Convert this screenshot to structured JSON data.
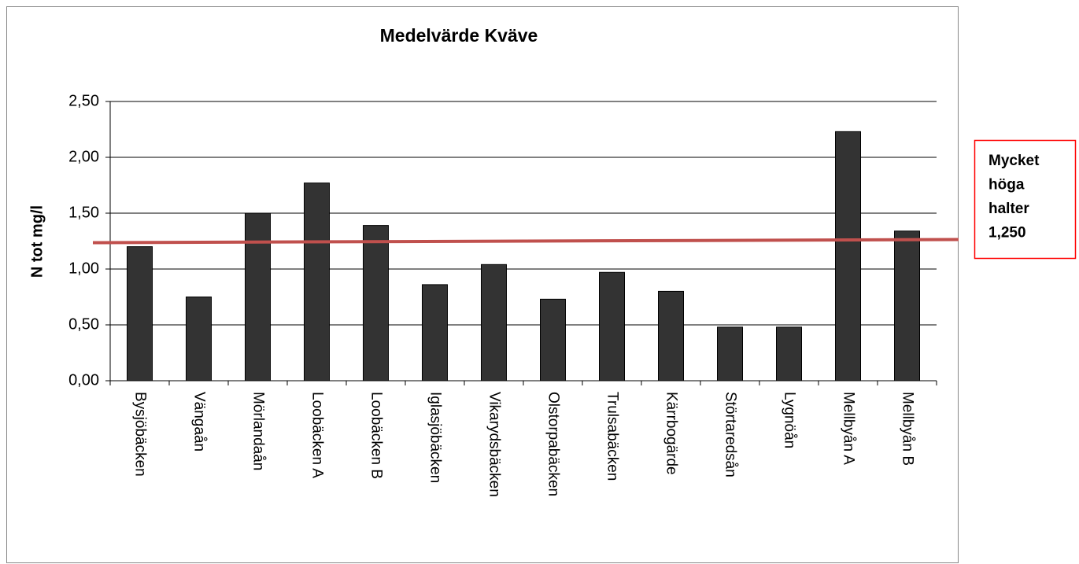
{
  "chart_data": {
    "type": "bar",
    "title": "Medelvärde Kväve",
    "y_label": "N tot mg/l",
    "categories": [
      "Bysjöbäcken",
      "Vängaån",
      "Mörlandaån",
      "Loobäcken A",
      "Loobäcken B",
      "Iglasjöbäcken",
      "Vikarydsbäcken",
      "Olstorpabäcken",
      "Trulsabäcken",
      "Kärrbogärde",
      "Störtaredsån",
      "Lygnöån",
      "Mellbyån A",
      "Mellbyån B"
    ],
    "values": [
      1.2,
      0.75,
      1.5,
      1.77,
      1.39,
      0.86,
      1.04,
      0.73,
      0.97,
      0.8,
      0.48,
      0.48,
      2.23,
      1.34
    ],
    "color": "#333333",
    "ylim": [
      0,
      2.5
    ],
    "yticks": [
      {
        "value": 0,
        "label": "0,00"
      },
      {
        "value": 0.5,
        "label": "0,50"
      },
      {
        "value": 1,
        "label": "1,00"
      },
      {
        "value": 1.5,
        "label": "1,50"
      },
      {
        "value": 2,
        "label": "2,00"
      },
      {
        "value": 2.5,
        "label": "2,50"
      }
    ],
    "grid": true,
    "threshold": {
      "value": 1.25,
      "color": "#c0504d",
      "label_lines": [
        "Mycket",
        "höga",
        "halter",
        "1,250"
      ],
      "label_color": "#ff0000"
    }
  }
}
